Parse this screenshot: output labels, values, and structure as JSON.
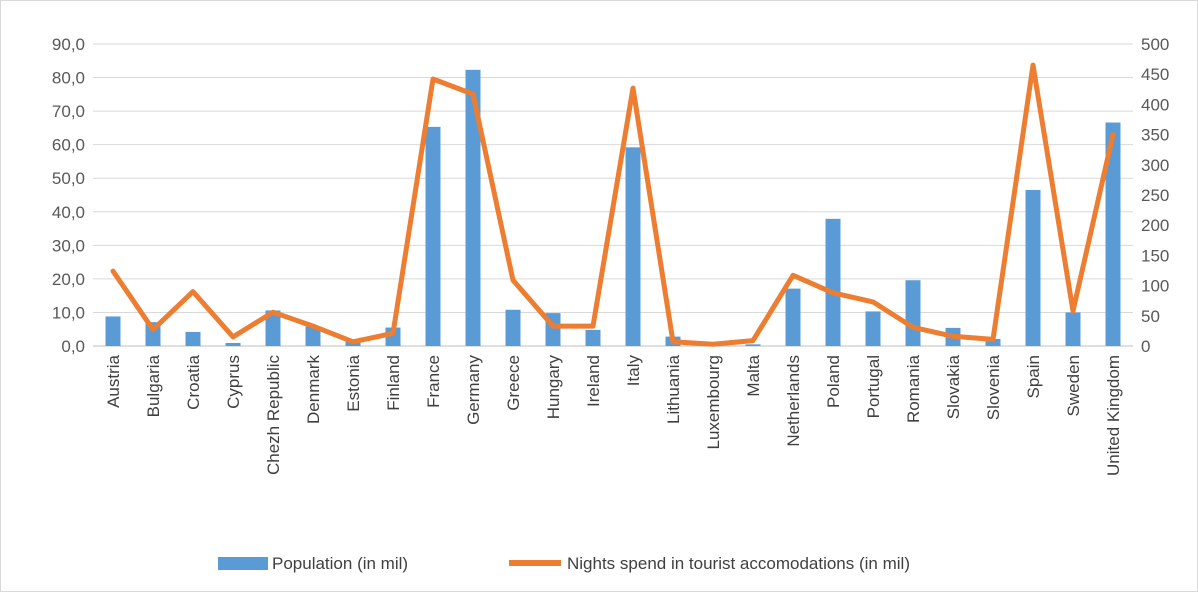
{
  "chart_data": {
    "type": "bar",
    "title": "",
    "categories": [
      "Austria",
      "Bulgaria",
      "Croatia",
      "Cyprus",
      "Chezh Republic",
      "Denmark",
      "Estonia",
      "Finland",
      "France",
      "Germany",
      "Greece",
      "Hungary",
      "Ireland",
      "Italy",
      "Lithuania",
      "Luxembourg",
      "Malta",
      "Netherlands",
      "Poland",
      "Portugal",
      "Romania",
      "Slovakia",
      "Slovenia",
      "Spain",
      "Sweden",
      "United Kingdom"
    ],
    "series": [
      {
        "name": "Population (in mil)",
        "type": "bar",
        "axis": "left",
        "color": "#5b9bd5",
        "values": [
          8.8,
          7.1,
          4.2,
          0.9,
          10.6,
          5.8,
          1.3,
          5.5,
          65.3,
          82.3,
          10.8,
          9.8,
          4.8,
          59.2,
          2.8,
          0.6,
          0.5,
          17.1,
          37.9,
          10.3,
          19.6,
          5.4,
          2.1,
          46.5,
          10.0,
          66.6
        ]
      },
      {
        "name": "Nights spend in tourist accomodations (in mil)",
        "type": "line",
        "axis": "right",
        "color": "#ed7d31",
        "values": [
          124,
          27,
          90,
          15,
          56,
          33,
          7,
          21,
          442,
          417,
          109,
          33,
          33,
          427,
          7,
          3,
          9,
          117,
          88,
          73,
          31,
          16,
          11,
          465,
          58,
          350
        ]
      }
    ],
    "y_left": {
      "min": 0,
      "max": 90,
      "step": 10,
      "ticks": [
        "0,0",
        "10,0",
        "20,0",
        "30,0",
        "40,0",
        "50,0",
        "60,0",
        "70,0",
        "80,0",
        "90,0"
      ]
    },
    "y_right": {
      "min": 0,
      "max": 500,
      "step": 50,
      "ticks": [
        "0",
        "50",
        "100",
        "150",
        "200",
        "250",
        "300",
        "350",
        "400",
        "450",
        "500"
      ]
    },
    "grid": true,
    "legend_position": "bottom"
  }
}
